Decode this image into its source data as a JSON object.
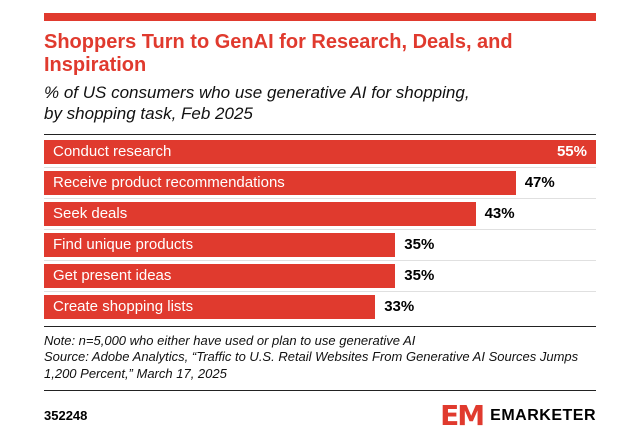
{
  "header": {
    "title": "Shoppers Turn to GenAI for Research, Deals, and Inspiration",
    "subtitle": "% of US consumers who use generative AI for shopping, by shopping task, Feb 2025"
  },
  "chart_data": {
    "type": "bar",
    "orientation": "horizontal",
    "title": "Shoppers Turn to GenAI for Research, Deals, and Inspiration",
    "subtitle": "% of US consumers who use generative AI for shopping, by shopping task, Feb 2025",
    "categories": [
      "Conduct research",
      "Receive product recommendations",
      "Seek deals",
      "Find unique products",
      "Get present ideas",
      "Create shopping lists"
    ],
    "values": [
      55,
      47,
      43,
      35,
      35,
      33
    ],
    "value_suffix": "%",
    "xlabel": "",
    "ylabel": "",
    "xlim": [
      0,
      55
    ],
    "grid": false,
    "legend": false,
    "bar_color": "#e03a2e"
  },
  "footer": {
    "note": "Note: n=5,000 who either have used or plan to use generative AI",
    "source": "Source: Adobe Analytics, “Traffic to U.S. Retail Websites From Generative AI Sources Jumps 1,200 Percent,” March 17, 2025",
    "chart_id": "352248",
    "brand_monogram": "EM",
    "brand": "EMARKETER"
  },
  "colors": {
    "accent": "#e03a2e",
    "text": "#000000",
    "row_separator": "#e0e0e0"
  }
}
